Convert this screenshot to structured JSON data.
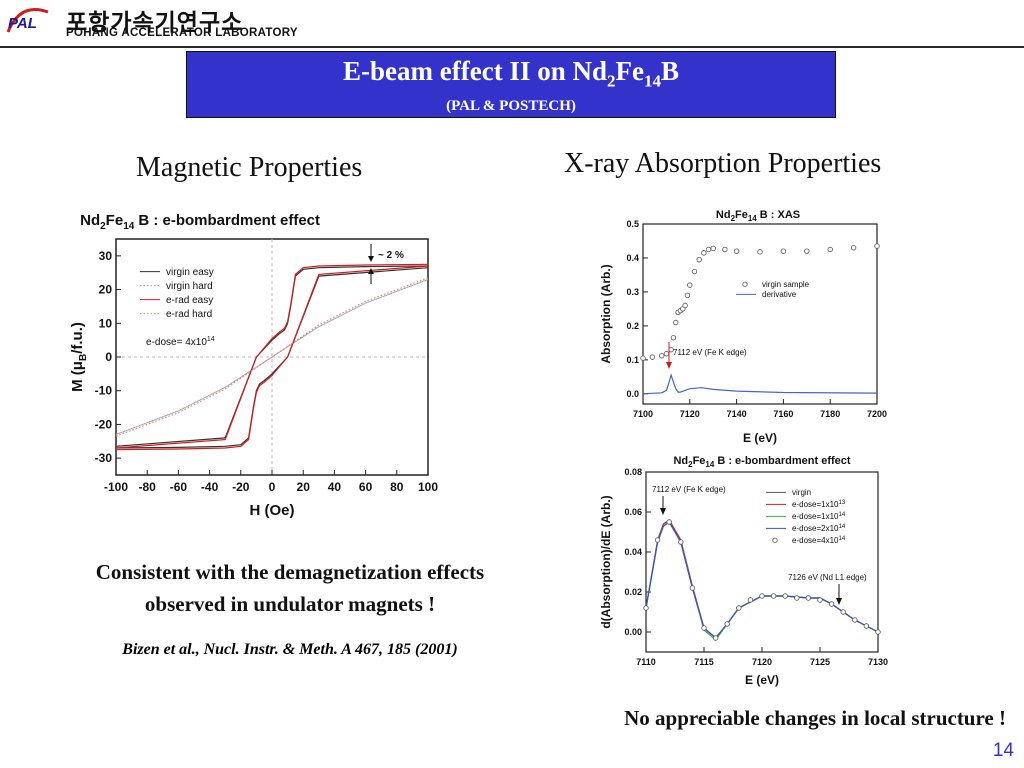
{
  "header": {
    "logo_abbr": "PAL",
    "logo_korean": "포항가속기연구소",
    "logo_english": "POHANG ACCELERATOR LABORATORY"
  },
  "title": {
    "main_prefix": "E-beam effect II on Nd",
    "main_sub1": "2",
    "main_mid": "Fe",
    "main_sub2": "14",
    "main_suffix": "B",
    "subtitle": "(PAL & POSTECH)"
  },
  "sections": {
    "magnetic": "Magnetic Properties",
    "xray": "X-ray Absorption Properties"
  },
  "notes": {
    "magnetic_line1": "Consistent with the demagnetization effects",
    "magnetic_line2": "observed in undulator magnets !",
    "citation": "Bizen et al., Nucl. Instr. & Meth. A 467, 185 (2001)",
    "xray": "No appreciable changes in local structure !"
  },
  "page_number": "14",
  "colors": {
    "title_bg": "#3333cc",
    "accent_red": "#d21c1c",
    "accent_blue": "#3355cc",
    "page_num": "#3333cc"
  },
  "chart_data": [
    {
      "type": "line",
      "title_parts": [
        "Nd",
        "2",
        "Fe",
        "14",
        "B : e-bombardment effect"
      ],
      "xlabel": "H (Oe)",
      "ylabel_parts": [
        "M (μ",
        "B",
        "/f.u.)"
      ],
      "xlim": [
        -100,
        100
      ],
      "ylim": [
        -35,
        35
      ],
      "xticks": [
        "-100",
        "-80",
        "-60",
        "-40",
        "-20",
        "0",
        "20",
        "40",
        "60",
        "80",
        "100"
      ],
      "yticks": [
        "30",
        "20",
        "10",
        "0",
        "-10",
        "-20",
        "-30"
      ],
      "annotation_dose": "e-dose= 4x10",
      "annotation_dose_exp": "14",
      "annotation_delta": "~ 2 %",
      "legend_position": "top-left",
      "series": [
        {
          "name": "virgin easy",
          "color": "#333333",
          "style": "solid",
          "x": [
            -100,
            -60,
            -30,
            -20,
            -15,
            -12,
            -10,
            -8,
            -5,
            0,
            10,
            30,
            100
          ],
          "y": [
            -27,
            -26.8,
            -26.5,
            -26,
            -24,
            -15,
            -10,
            -8,
            -7,
            -5,
            0,
            24,
            26.5
          ]
        },
        {
          "name": "virgin hard",
          "color": "#999999",
          "style": "dotted",
          "x": [
            -100,
            -60,
            -30,
            0,
            30,
            60,
            100
          ],
          "y": [
            -23,
            -16,
            -9,
            0,
            9,
            16,
            23
          ]
        },
        {
          "name": "e-rad easy",
          "color": "#d21c1c",
          "style": "solid",
          "x": [
            -100,
            -60,
            -30,
            -20,
            -15,
            -12,
            -10,
            -8,
            -5,
            0,
            10,
            30,
            100
          ],
          "y": [
            -27.5,
            -27.3,
            -27,
            -26.5,
            -24.5,
            -15.5,
            -10.5,
            -8.5,
            -7.5,
            -5.5,
            0,
            24.5,
            27
          ]
        },
        {
          "name": "e-rad hard",
          "color": "#e88888",
          "style": "dotted",
          "x": [
            -100,
            -60,
            -30,
            0,
            30,
            60,
            100
          ],
          "y": [
            -23.5,
            -16.5,
            -9.5,
            0,
            9.5,
            16.5,
            23.5
          ]
        }
      ]
    },
    {
      "type": "line",
      "title_parts": [
        "Nd",
        "2",
        "Fe",
        "14",
        "B : XAS"
      ],
      "xlabel": "E (eV)",
      "ylabel": "Absorption (Arb.)",
      "xlim": [
        7100,
        7200
      ],
      "ylim": [
        -0.03,
        0.5
      ],
      "xticks": [
        "7100",
        "7120",
        "7140",
        "7160",
        "7180",
        "7200"
      ],
      "yticks": [
        "0.0",
        "0.1",
        "0.2",
        "0.3",
        "0.4",
        "0.5"
      ],
      "annotation_edge": "7112 eV (Fe K edge)",
      "legend_position": "right",
      "series": [
        {
          "name": "virgin sample",
          "color": "#555555",
          "style": "circles",
          "x": [
            7100,
            7104,
            7108,
            7110,
            7112,
            7113,
            7114,
            7115,
            7116,
            7117,
            7118,
            7119,
            7120,
            7122,
            7124,
            7126,
            7128,
            7130,
            7135,
            7140,
            7150,
            7160,
            7170,
            7180,
            7190,
            7200
          ],
          "y": [
            0.105,
            0.108,
            0.112,
            0.118,
            0.13,
            0.165,
            0.21,
            0.24,
            0.245,
            0.25,
            0.26,
            0.29,
            0.32,
            0.36,
            0.395,
            0.415,
            0.425,
            0.428,
            0.425,
            0.42,
            0.418,
            0.42,
            0.42,
            0.425,
            0.43,
            0.435
          ]
        },
        {
          "name": "derivative",
          "color": "#4466cc",
          "style": "solid",
          "x": [
            7100,
            7108,
            7110,
            7111,
            7112,
            7113,
            7114,
            7115,
            7116,
            7118,
            7120,
            7125,
            7130,
            7140,
            7160,
            7200
          ],
          "y": [
            0,
            0.003,
            0.01,
            0.03,
            0.055,
            0.035,
            0.015,
            0.005,
            0.005,
            0.01,
            0.015,
            0.018,
            0.013,
            0.008,
            0.004,
            0.002
          ]
        }
      ]
    },
    {
      "type": "line",
      "title_parts": [
        "Nd",
        "2",
        "Fe",
        "14",
        "B : e-bombardment effect"
      ],
      "xlabel": "E (eV)",
      "ylabel": "d(Absorption)/dE (Arb.)",
      "xlim": [
        7110,
        7130
      ],
      "ylim": [
        -0.01,
        0.08
      ],
      "xticks": [
        "7110",
        "7115",
        "7120",
        "7125",
        "7130"
      ],
      "yticks": [
        "0.00",
        "0.02",
        "0.04",
        "0.06",
        "0.08"
      ],
      "annotation_fe": "7112 eV (Fe K edge)",
      "annotation_nd": "7126 eV (Nd L1 edge)",
      "legend_position": "top-right",
      "series": [
        {
          "name": "virgin",
          "name_exp": "",
          "color": "#555555",
          "style": "solid",
          "x": [
            7110,
            7111,
            7111.5,
            7112,
            7113,
            7114,
            7115,
            7116,
            7117,
            7118,
            7120,
            7122,
            7124,
            7125,
            7126,
            7128,
            7130
          ],
          "y": [
            0.012,
            0.045,
            0.053,
            0.055,
            0.045,
            0.022,
            0.002,
            -0.003,
            0.004,
            0.012,
            0.018,
            0.018,
            0.017,
            0.017,
            0.014,
            0.006,
            0.0
          ]
        },
        {
          "name": "e-dose=1x10",
          "name_exp": "13",
          "color": "#d21c1c",
          "style": "solid",
          "x": [
            7110,
            7111,
            7111.5,
            7112,
            7113,
            7114,
            7115,
            7116,
            7117,
            7118,
            7120,
            7122,
            7124,
            7125,
            7126,
            7128,
            7130
          ],
          "y": [
            0.012,
            0.046,
            0.054,
            0.056,
            0.046,
            0.023,
            0.002,
            -0.003,
            0.004,
            0.012,
            0.018,
            0.018,
            0.017,
            0.017,
            0.014,
            0.006,
            0.0
          ]
        },
        {
          "name": "e-dose=1x10",
          "name_exp": "14",
          "color": "#3fae3f",
          "style": "solid",
          "x": [
            7110,
            7111,
            7111.5,
            7112,
            7113,
            7114,
            7115,
            7116,
            7117,
            7118,
            7120,
            7122,
            7124,
            7125,
            7126,
            7128,
            7130
          ],
          "y": [
            0.012,
            0.045,
            0.053,
            0.055,
            0.045,
            0.022,
            0.001,
            -0.004,
            0.004,
            0.012,
            0.018,
            0.018,
            0.017,
            0.017,
            0.014,
            0.006,
            0.0
          ]
        },
        {
          "name": "e-dose=2x10",
          "name_exp": "14",
          "color": "#3355cc",
          "style": "solid",
          "x": [
            7110,
            7111,
            7111.5,
            7112,
            7113,
            7114,
            7115,
            7116,
            7117,
            7118,
            7120,
            7122,
            7124,
            7125,
            7126,
            7128,
            7130
          ],
          "y": [
            0.012,
            0.045,
            0.053,
            0.055,
            0.045,
            0.022,
            0.002,
            -0.003,
            0.004,
            0.012,
            0.018,
            0.018,
            0.017,
            0.017,
            0.014,
            0.006,
            0.0
          ]
        },
        {
          "name": "e-dose=4x10",
          "name_exp": "14",
          "color": "#555555",
          "style": "circles",
          "x": [
            7110,
            7111,
            7112,
            7113,
            7114,
            7115,
            7116,
            7117,
            7118,
            7119,
            7120,
            7121,
            7122,
            7123,
            7124,
            7125,
            7126,
            7127,
            7128,
            7129,
            7130
          ],
          "y": [
            0.012,
            0.046,
            0.055,
            0.045,
            0.022,
            0.002,
            -0.003,
            0.004,
            0.012,
            0.016,
            0.018,
            0.018,
            0.018,
            0.017,
            0.017,
            0.016,
            0.014,
            0.01,
            0.006,
            0.003,
            0.0
          ]
        }
      ]
    }
  ]
}
